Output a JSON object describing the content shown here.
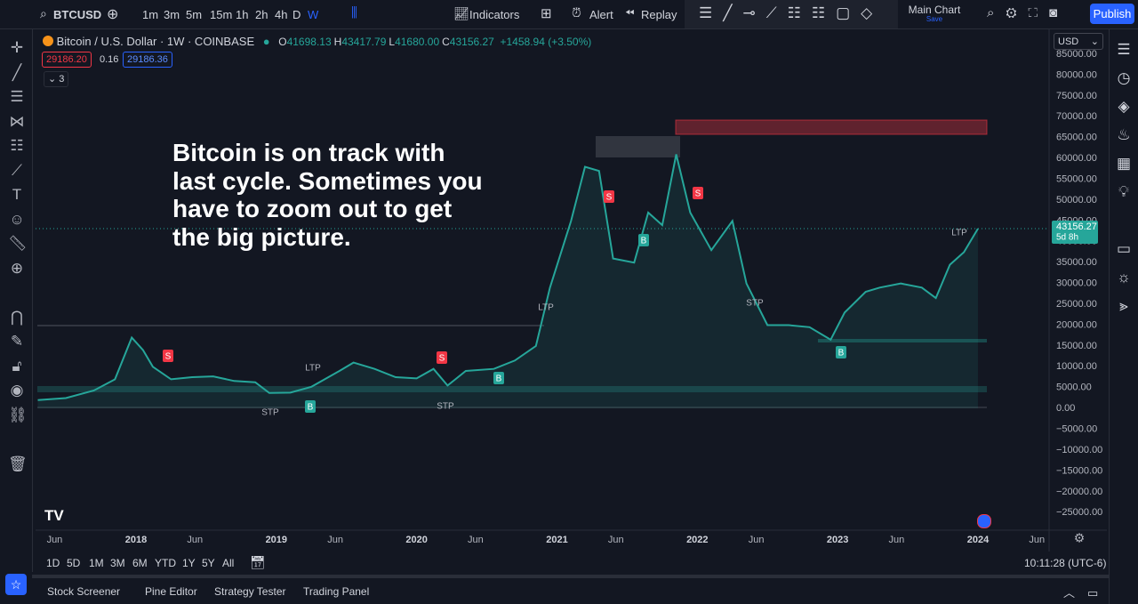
{
  "toolbar": {
    "symbol": "BTCUSD",
    "intervals": [
      "1m",
      "3m",
      "5m",
      "15m",
      "1h",
      "2h",
      "4h",
      "D",
      "W"
    ],
    "indicators": "Indicators",
    "alert": "Alert",
    "replay": "Replay",
    "layout": "Main Chart",
    "layout_status": "Save",
    "publish": "Publish"
  },
  "legend": {
    "title": "Bitcoin / U.S. Dollar · 1W · COINBASE",
    "ohlc": [
      {
        "key": "O",
        "value": "41698.13"
      },
      {
        "key": "H",
        "value": "43417.79"
      },
      {
        "key": "L",
        "value": "41680.00"
      },
      {
        "key": "C",
        "value": "43156.27"
      }
    ],
    "change": "+1458.94 (+3.50%)",
    "sell": "29186.20",
    "spread": "0.16",
    "buy": "29186.36",
    "indicators_count": "3"
  },
  "annotation": [
    "Bitcoin is on track with",
    "last cycle. Sometimes you",
    "have to zoom out to get",
    "the big picture."
  ],
  "currency": "USD",
  "signals": [
    "S",
    "S",
    "S",
    "S",
    "B",
    "B",
    "B",
    "B",
    "LTP",
    "LTP",
    "LTP",
    "STP",
    "STP",
    "STP"
  ],
  "chart_data": {
    "type": "line",
    "color": "#26a69a",
    "x": [
      2017.3,
      2017.5,
      2017.7,
      2017.85,
      2017.97,
      2018.05,
      2018.12,
      2018.25,
      2018.4,
      2018.55,
      2018.7,
      2018.85,
      2018.95,
      2019.1,
      2019.25,
      2019.45,
      2019.55,
      2019.7,
      2019.85,
      2020.0,
      2020.12,
      2020.22,
      2020.35,
      2020.55,
      2020.7,
      2020.85,
      2020.95,
      2021.1,
      2021.2,
      2021.3,
      2021.4,
      2021.55,
      2021.65,
      2021.75,
      2021.85,
      2021.95,
      2022.1,
      2022.25,
      2022.35,
      2022.5,
      2022.65,
      2022.8,
      2022.95,
      2023.05,
      2023.2,
      2023.3,
      2023.45,
      2023.6,
      2023.7,
      2023.8,
      2023.9,
      2024.0
    ],
    "values": [
      2000,
      2500,
      4300,
      7000,
      17000,
      14000,
      10000,
      7000,
      7500,
      7700,
      6600,
      6300,
      3700,
      3800,
      5200,
      9000,
      11000,
      9500,
      7500,
      7200,
      9500,
      5500,
      9000,
      9500,
      11500,
      15000,
      29000,
      45000,
      58000,
      57000,
      36000,
      35000,
      47000,
      44000,
      61000,
      47000,
      38000,
      45000,
      30000,
      20000,
      20000,
      19500,
      16500,
      23000,
      28000,
      29000,
      30000,
      29000,
      26500,
      34500,
      37500,
      43156.27
    ],
    "last_price_countdown": "5d 8h",
    "xlim": [
      2017.3,
      2024.45
    ],
    "xticks": [
      {
        "value": 2017.42,
        "label": "Jun"
      },
      2018,
      {
        "value": 2018.42,
        "label": "Jun"
      },
      2019,
      {
        "value": 2019.42,
        "label": "Jun"
      },
      2020,
      {
        "value": 2020.42,
        "label": "Jun"
      },
      2021,
      {
        "value": 2021.42,
        "label": "Jun"
      },
      2022,
      {
        "value": 2022.42,
        "label": "Jun"
      },
      2023,
      {
        "value": 2023.42,
        "label": "Jun"
      },
      2024,
      {
        "value": 2024.42,
        "label": "Jun"
      }
    ],
    "ylim": [
      -29000,
      88000
    ],
    "yticks": [
      {
        "value": 85000,
        "label": "85000.00"
      },
      {
        "value": 80000,
        "label": "80000.00"
      },
      {
        "value": 75000,
        "label": "75000.00"
      },
      {
        "value": 70000,
        "label": "70000.00"
      },
      {
        "value": 65000,
        "label": "65000.00"
      },
      {
        "value": 60000,
        "label": "60000.00"
      },
      {
        "value": 55000,
        "label": "55000.00"
      },
      {
        "value": 50000,
        "label": "50000.00"
      },
      {
        "value": 45000,
        "label": "45000.00"
      },
      {
        "value": 40000,
        "label": "40000.00"
      },
      {
        "value": 35000,
        "label": "35000.00"
      },
      {
        "value": 30000,
        "label": "30000.00"
      },
      {
        "value": 25000,
        "label": "25000.00"
      },
      {
        "value": 20000,
        "label": "20000.00"
      },
      {
        "value": 15000,
        "label": "15000.00"
      },
      {
        "value": 10000,
        "label": "10000.00"
      },
      {
        "value": 5000,
        "label": "5000.00"
      },
      {
        "value": 0,
        "label": "0.00"
      },
      {
        "value": -5000,
        "label": "−5000.00"
      },
      {
        "value": -10000,
        "label": "−10000.00"
      },
      {
        "value": -15000,
        "label": "−15000.00"
      },
      {
        "value": -20000,
        "label": "−20000.00"
      },
      {
        "value": -25000,
        "label": "−25000.00"
      }
    ],
    "grid": false
  },
  "bottom": {
    "ranges": [
      "1D",
      "5D",
      "1M",
      "3M",
      "6M",
      "YTD",
      "1Y",
      "5Y",
      "All"
    ],
    "clock": "10:11:28 (UTC-6)",
    "tabs": [
      "Stock Screener",
      "Pine Editor",
      "Strategy Tester",
      "Trading Panel"
    ]
  }
}
